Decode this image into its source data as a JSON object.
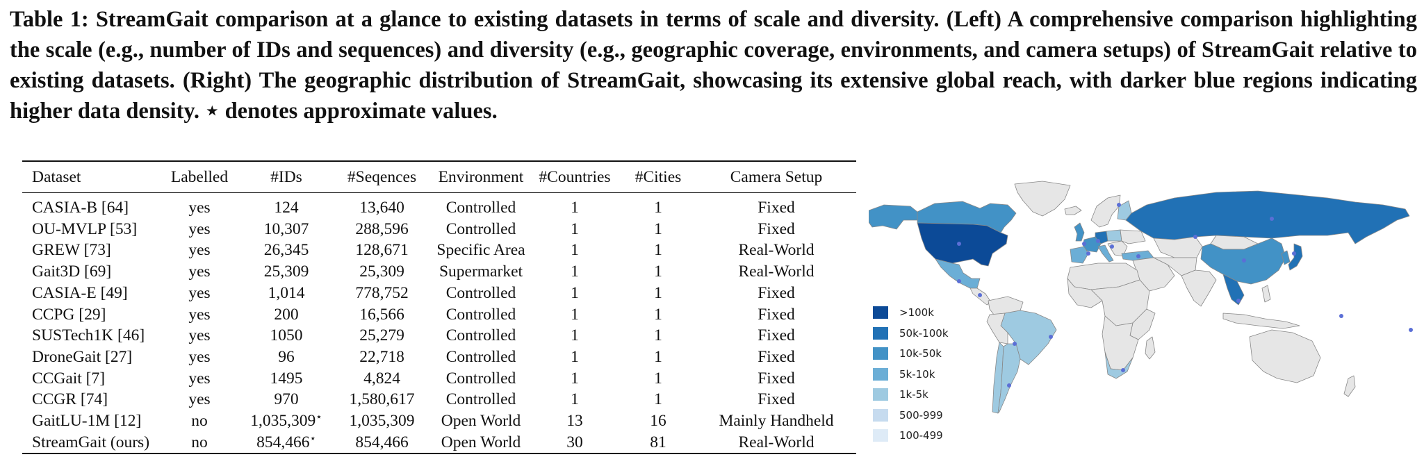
{
  "caption": "Table 1: StreamGait comparison at a glance to existing datasets in terms of scale and diversity. (Left) A comprehensive comparison highlighting the scale (e.g., number of IDs and sequences) and diversity (e.g., geographic coverage, environments, and camera setups) of StreamGait relative to existing datasets. (Right) The geographic distribution of StreamGait, showcasing its extensive global reach, with darker blue regions indicating higher data density. ⋆ denotes approximate values.",
  "table": {
    "headers": [
      "Dataset",
      "Labelled",
      "#IDs",
      "#Seqences",
      "Environment",
      "#Countries",
      "#Cities",
      "Camera Setup"
    ],
    "rows": [
      [
        "CASIA-B [64]",
        "yes",
        "124",
        "13,640",
        "Controlled",
        "1",
        "1",
        "Fixed"
      ],
      [
        "OU-MVLP [53]",
        "yes",
        "10,307",
        "288,596",
        "Controlled",
        "1",
        "1",
        "Fixed"
      ],
      [
        "GREW [73]",
        "yes",
        "26,345",
        "128,671",
        "Specific Area",
        "1",
        "1",
        "Real-World"
      ],
      [
        "Gait3D [69]",
        "yes",
        "25,309",
        "25,309",
        "Supermarket",
        "1",
        "1",
        "Real-World"
      ],
      [
        "CASIA-E [49]",
        "yes",
        "1,014",
        "778,752",
        "Controlled",
        "1",
        "1",
        "Fixed"
      ],
      [
        "CCPG [29]",
        "yes",
        "200",
        "16,566",
        "Controlled",
        "1",
        "1",
        "Fixed"
      ],
      [
        "SUSTech1K [46]",
        "yes",
        "1050",
        "25,279",
        "Controlled",
        "1",
        "1",
        "Fixed"
      ],
      [
        "DroneGait [27]",
        "yes",
        "96",
        "22,718",
        "Controlled",
        "1",
        "1",
        "Fixed"
      ],
      [
        "CCGait [7]",
        "yes",
        "1495",
        "4,824",
        "Controlled",
        "1",
        "1",
        "Fixed"
      ],
      [
        "CCGR [74]",
        "yes",
        "970",
        "1,580,617",
        "Controlled",
        "1",
        "1",
        "Fixed"
      ],
      [
        "GaitLU-1M [12]",
        "no",
        "1,035,309",
        "1,035,309",
        "Open World",
        "13",
        "16",
        "Mainly Handheld"
      ],
      [
        "StreamGait (ours)",
        "no",
        "854,466",
        "854,466",
        "Open World",
        "30",
        "81",
        "Real-World"
      ]
    ],
    "approx_mark": "⋆",
    "approx_ids_rows": [
      10,
      11
    ]
  },
  "legend": [
    {
      "label": ">100k",
      "color": "#0c4a97"
    },
    {
      "label": "50k-100k",
      "color": "#2171b5"
    },
    {
      "label": "10k-50k",
      "color": "#4292c6"
    },
    {
      "label": "5k-10k",
      "color": "#6baed6"
    },
    {
      "label": "1k-5k",
      "color": "#9ecae1"
    },
    {
      "label": "500-999",
      "color": "#c6dbef"
    },
    {
      "label": "100-499",
      "color": "#deebf7"
    }
  ],
  "map_colors": {
    "no_data": "#e6e6e6",
    "border": "#888888",
    "city_dot": "#5b6fd6"
  }
}
